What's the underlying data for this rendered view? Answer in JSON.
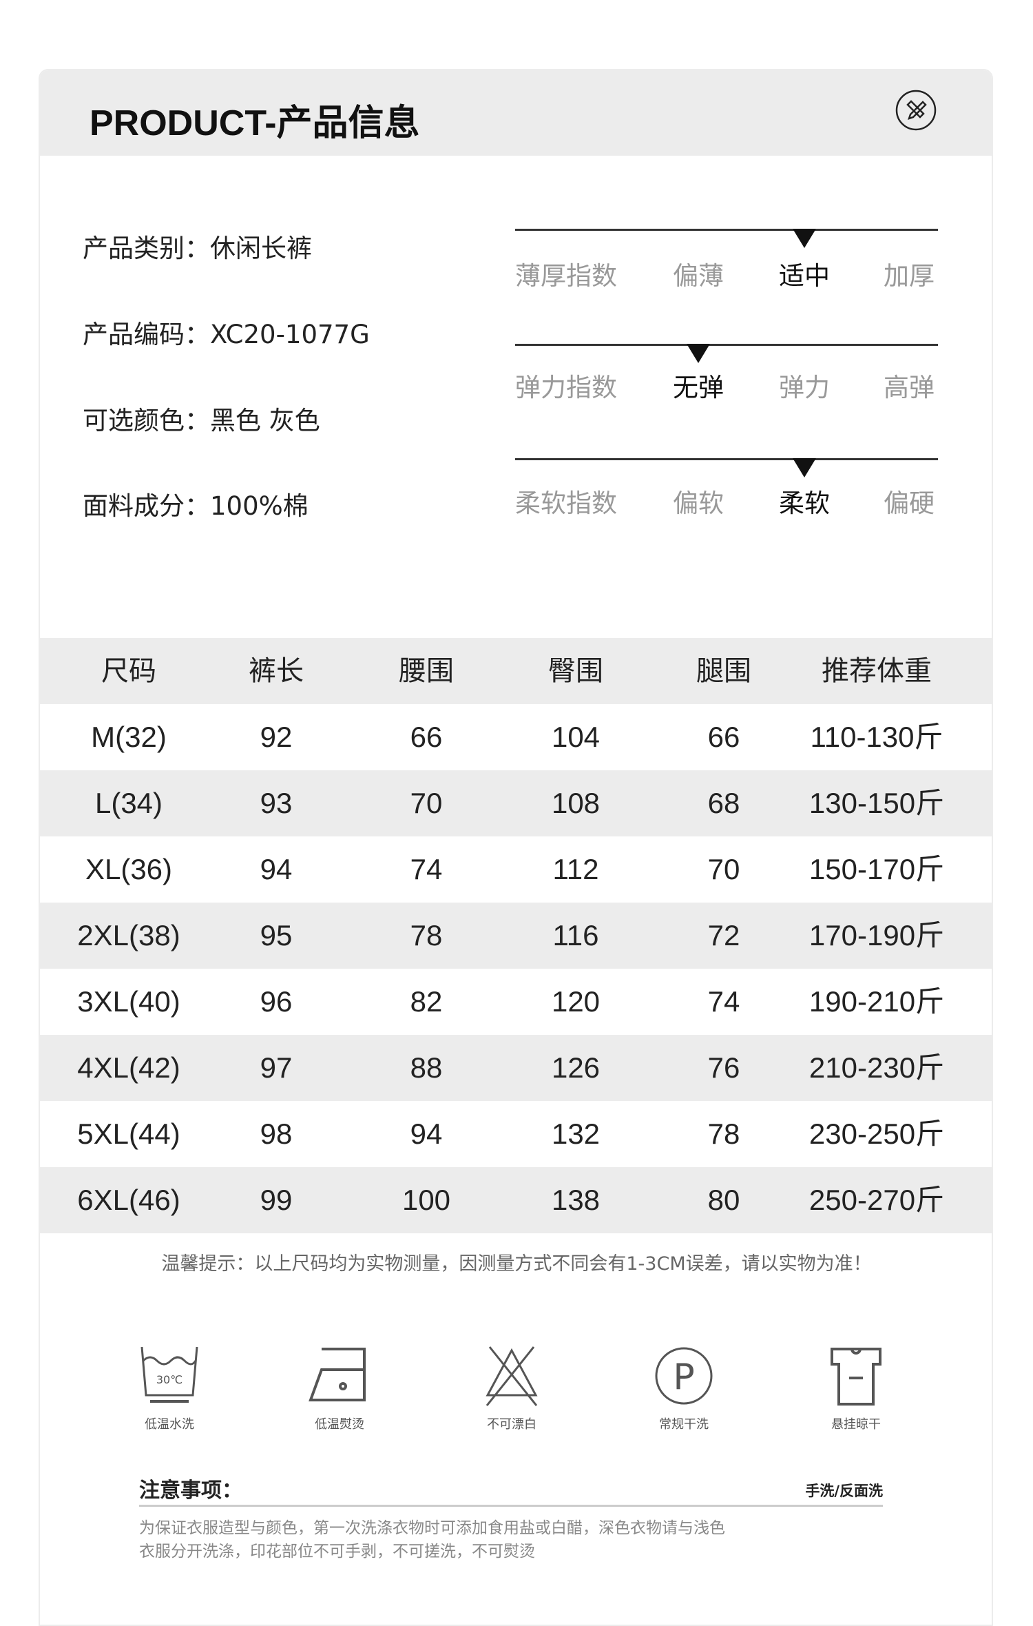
{
  "header": {
    "title": "PRODUCT-产品信息",
    "icon": "pencil-ruler-icon"
  },
  "info": [
    {
      "label": "产品类别：",
      "value": "休闲长裤"
    },
    {
      "label": "产品编码：",
      "value": "XC20-1077G"
    },
    {
      "label": "可选颜色：",
      "value": "黑色  灰色"
    },
    {
      "label": "面料成分：",
      "value": "100%棉"
    }
  ],
  "indices": [
    {
      "name": "薄厚指数",
      "options": [
        "偏薄",
        "适中",
        "加厚"
      ],
      "selected": "适中"
    },
    {
      "name": "弹力指数",
      "options": [
        "无弹",
        "弹力",
        "高弹"
      ],
      "selected": "无弹"
    },
    {
      "name": "柔软指数",
      "options": [
        "偏软",
        "柔软",
        "偏硬"
      ],
      "selected": "柔软"
    }
  ],
  "table": {
    "headers": [
      "尺码",
      "裤长",
      "腰围",
      "臀围",
      "腿围",
      "推荐体重"
    ],
    "rows": [
      [
        "M(32)",
        "92",
        "66",
        "104",
        "66",
        "110-130斤"
      ],
      [
        "L(34)",
        "93",
        "70",
        "108",
        "68",
        "130-150斤"
      ],
      [
        "XL(36)",
        "94",
        "74",
        "112",
        "70",
        "150-170斤"
      ],
      [
        "2XL(38)",
        "95",
        "78",
        "116",
        "72",
        "170-190斤"
      ],
      [
        "3XL(40)",
        "96",
        "82",
        "120",
        "74",
        "190-210斤"
      ],
      [
        "4XL(42)",
        "97",
        "88",
        "126",
        "76",
        "210-230斤"
      ],
      [
        "5XL(44)",
        "98",
        "94",
        "132",
        "78",
        "230-250斤"
      ],
      [
        "6XL(46)",
        "99",
        "100",
        "138",
        "80",
        "250-270斤"
      ]
    ]
  },
  "note": "温馨提示：以上尺码均为实物测量，因测量方式不同会有1-3CM误差，请以实物为准！",
  "care": [
    {
      "icon": "wash-30c-icon",
      "label": "低温水洗",
      "temp": "30℃"
    },
    {
      "icon": "iron-low-icon",
      "label": "低温熨烫"
    },
    {
      "icon": "no-bleach-icon",
      "label": "不可漂白"
    },
    {
      "icon": "dry-clean-p-icon",
      "label": "常规干洗",
      "letter": "P"
    },
    {
      "icon": "hang-dry-icon",
      "label": "悬挂晾干"
    }
  ],
  "attention": {
    "title": "注意事项：",
    "method": "手洗/反面洗",
    "lines": [
      "为保证衣服造型与颜色，第一次洗涤衣物时可添加食用盐或白醋，深色衣物请与浅色",
      "衣服分开洗涤，印花部位不可手剥，不可搓洗，不可熨烫"
    ]
  }
}
